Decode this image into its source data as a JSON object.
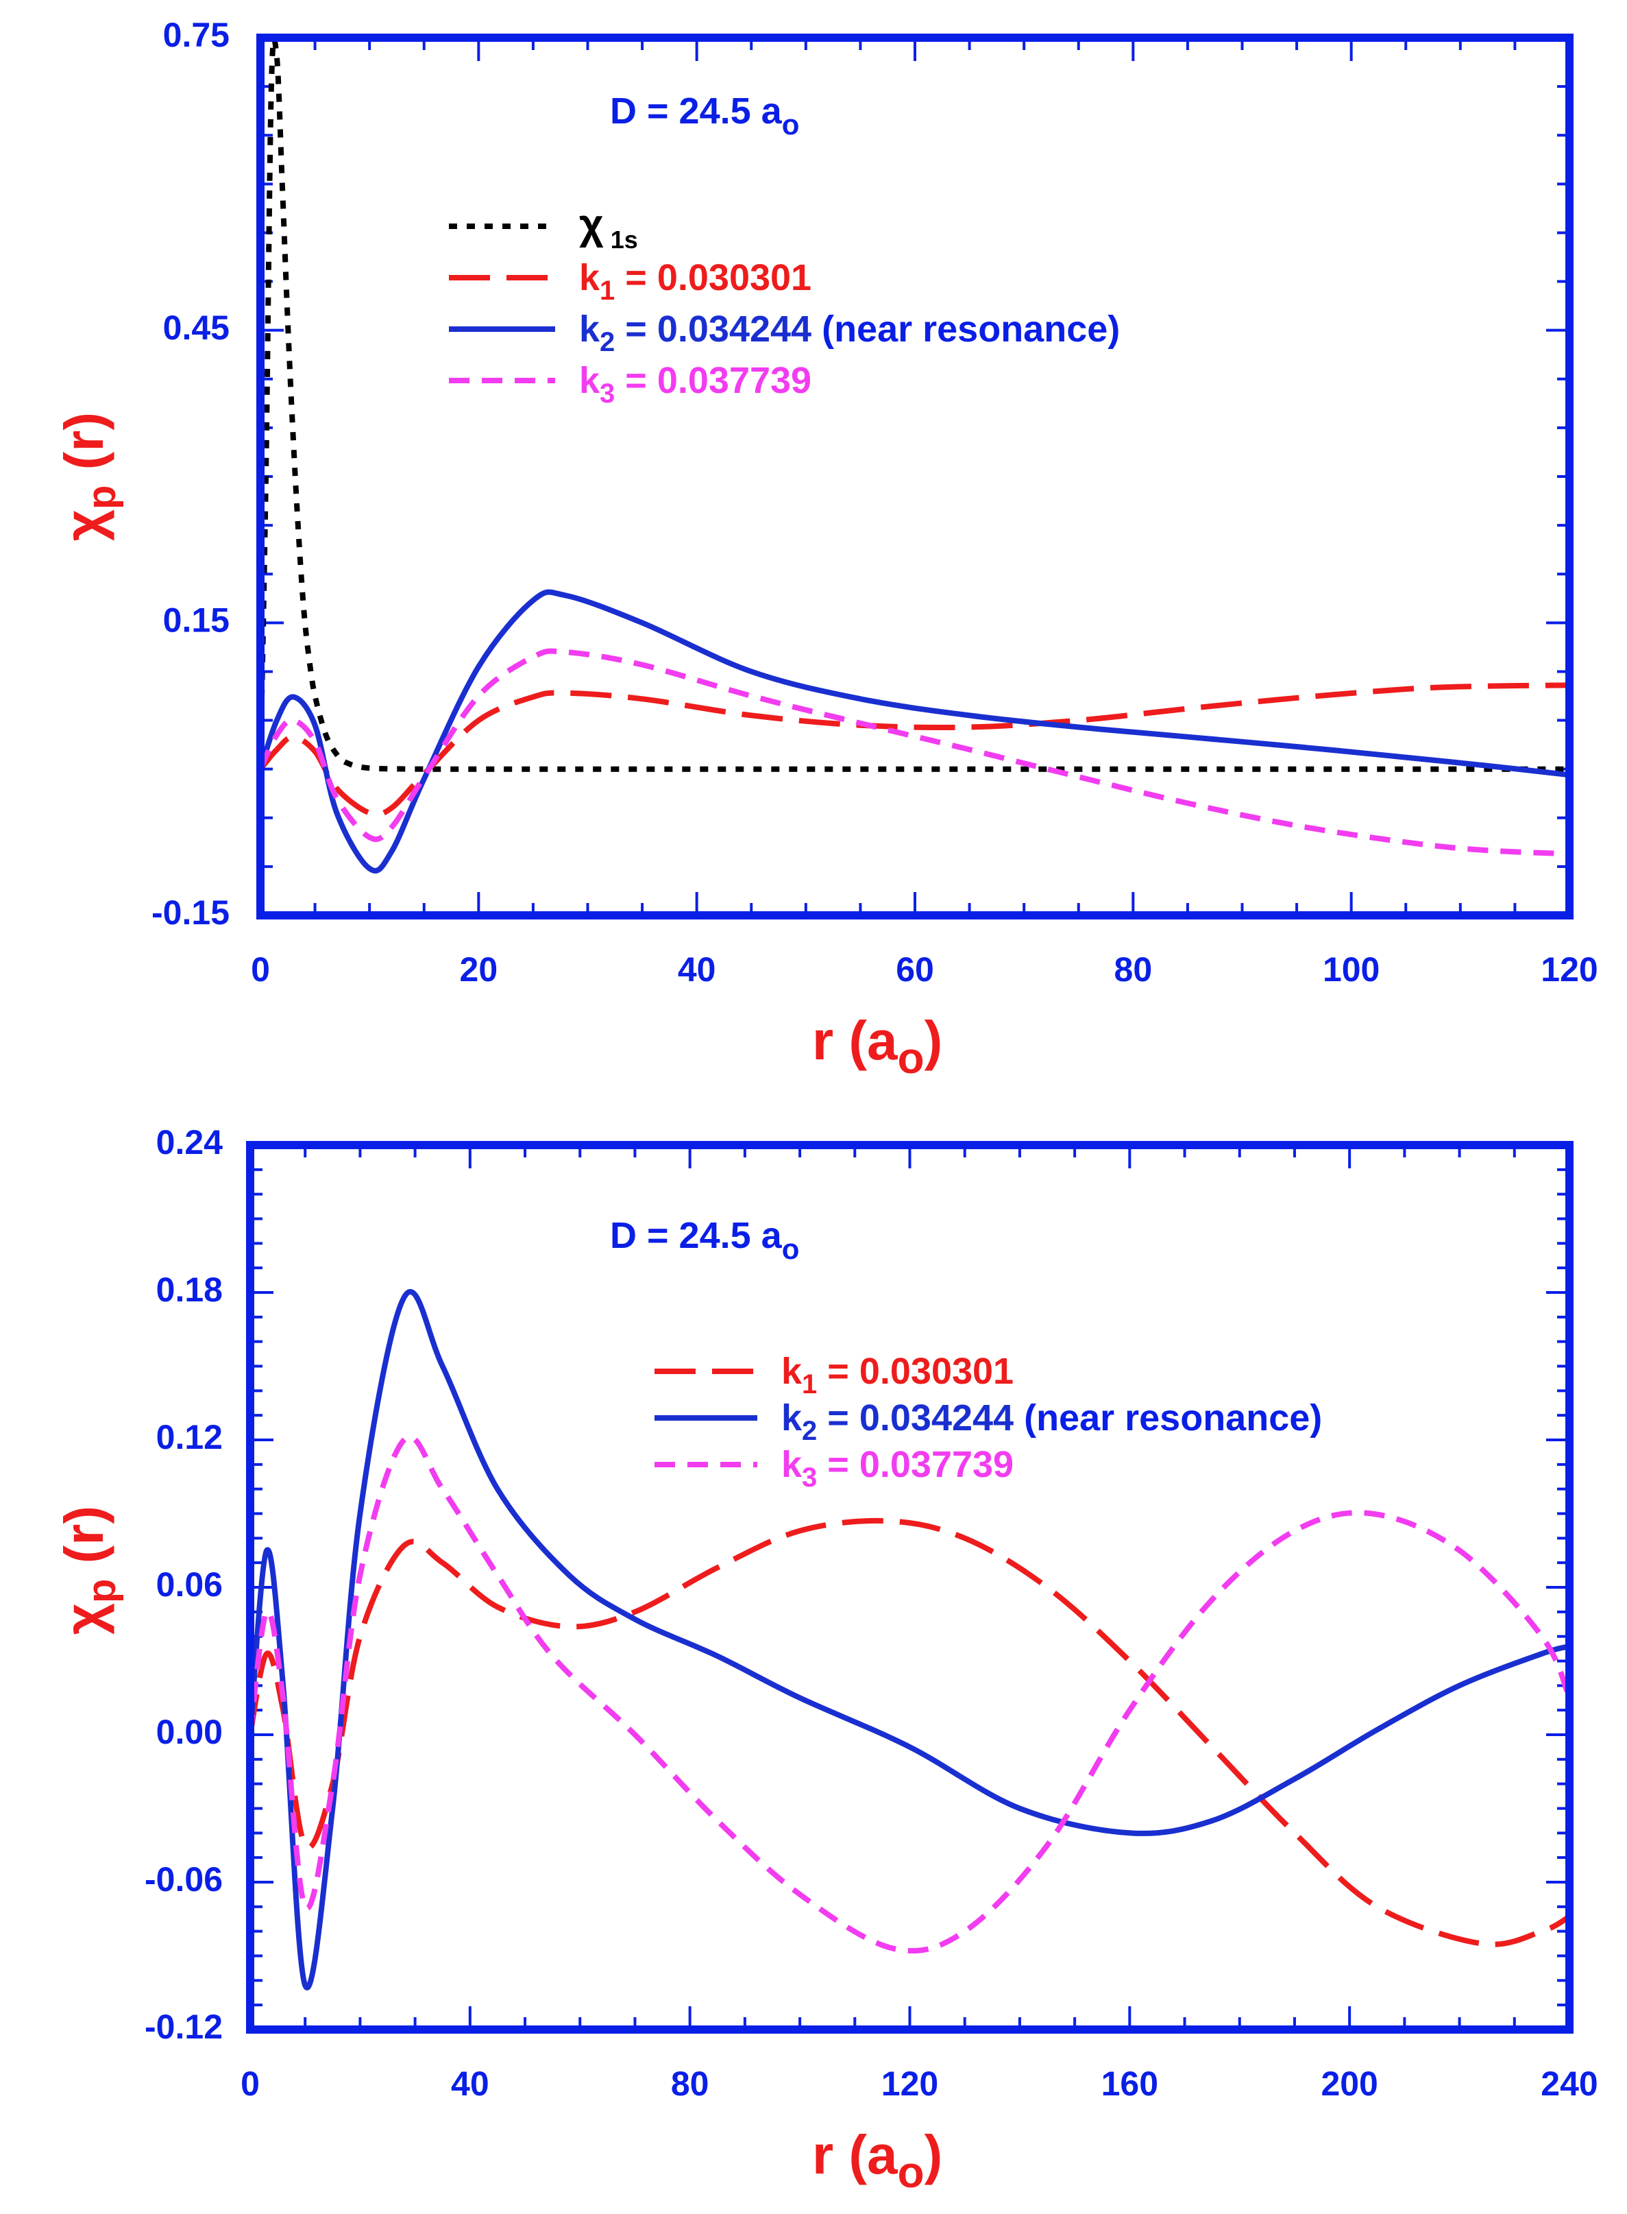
{
  "colors": {
    "frame": "#0a1fe6",
    "label_blue": "#0a1fe6",
    "label_red": "#ee1c1c",
    "chi1s": "#000000",
    "k1": "#ee1c1c",
    "k2": "#1a2fd0",
    "k3": "#f23cf0"
  },
  "chart_data": [
    {
      "type": "line",
      "title": "",
      "annotation": {
        "main": "D = 24.5 a",
        "sub": "o"
      },
      "xlabel": {
        "main": "r (a",
        "sub": "o",
        "close": ")"
      },
      "ylabel": {
        "main": "χ",
        "sub": "p",
        "rest": " (r)"
      },
      "xlim": [
        0,
        120
      ],
      "ylim": [
        -0.15,
        0.75
      ],
      "x_ticks": [
        "0",
        "20",
        "40",
        "60",
        "80",
        "100",
        "120"
      ],
      "y_ticks": [
        "-0.15",
        "0.15",
        "0.45",
        "0.75"
      ],
      "legend": [
        {
          "pre": "χ",
          "sub": " 1s",
          "post": "",
          "extra": "",
          "color_key": "chi1s",
          "style": "dotted"
        },
        {
          "pre": "k",
          "sub": "1",
          "post": " = 0.030301",
          "extra": "",
          "color_key": "k1",
          "style": "long-dash"
        },
        {
          "pre": "k",
          "sub": "2",
          "post": " = 0.034244",
          "extra": "  (near resonance)",
          "color_key": "k2",
          "style": "solid"
        },
        {
          "pre": "k",
          "sub": "3",
          "post": " = 0.037739",
          "extra": "",
          "color_key": "k3",
          "style": "short-dash"
        }
      ],
      "series": [
        {
          "name": "χ 1s",
          "color_key": "chi1s",
          "style": "dotted",
          "x": [
            0,
            0.5,
            1.0,
            1.5,
            2.0,
            2.5,
            3,
            3.5,
            4,
            4.5,
            5,
            6,
            7,
            8,
            10,
            15,
            20,
            40,
            60,
            80,
            100,
            120
          ],
          "y": [
            0,
            0.3,
            0.7,
            0.73,
            0.6,
            0.46,
            0.34,
            0.24,
            0.16,
            0.11,
            0.075,
            0.035,
            0.015,
            0.006,
            0.001,
            0,
            0,
            0,
            0,
            0,
            0,
            0
          ]
        },
        {
          "name": "k1 = 0.030301",
          "color_key": "k1",
          "style": "long-dash",
          "x": [
            0,
            1.5,
            3,
            5,
            7,
            10,
            12,
            15,
            20,
            25,
            28,
            35,
            45,
            55,
            65,
            75,
            85,
            95,
            105,
            112,
            120
          ],
          "y": [
            0,
            0.02,
            0.033,
            0.018,
            -0.02,
            -0.045,
            -0.04,
            -0.005,
            0.05,
            0.074,
            0.078,
            0.072,
            0.055,
            0.045,
            0.043,
            0.05,
            0.062,
            0.073,
            0.082,
            0.085,
            0.086
          ]
        },
        {
          "name": "k2 = 0.034244",
          "color_key": "k2",
          "style": "solid",
          "x": [
            0,
            1.5,
            3,
            5,
            7,
            10,
            12,
            15,
            20,
            25,
            28,
            35,
            45,
            55,
            65,
            75,
            85,
            95,
            105,
            112,
            120
          ],
          "y": [
            0,
            0.05,
            0.074,
            0.045,
            -0.045,
            -0.102,
            -0.085,
            -0.01,
            0.105,
            0.173,
            0.178,
            0.15,
            0.1,
            0.072,
            0.055,
            0.043,
            0.033,
            0.023,
            0.012,
            0.004,
            -0.006
          ]
        },
        {
          "name": "k3 = 0.037739",
          "color_key": "k3",
          "style": "short-dash",
          "x": [
            0,
            1.5,
            3,
            5,
            7,
            10,
            12,
            15,
            20,
            25,
            28,
            35,
            45,
            55,
            65,
            75,
            85,
            95,
            105,
            112,
            120
          ],
          "y": [
            0,
            0.035,
            0.05,
            0.028,
            -0.03,
            -0.07,
            -0.06,
            -0.008,
            0.075,
            0.115,
            0.12,
            0.107,
            0.075,
            0.047,
            0.02,
            -0.008,
            -0.035,
            -0.058,
            -0.075,
            -0.083,
            -0.087
          ]
        }
      ]
    },
    {
      "type": "line",
      "title": "",
      "annotation": {
        "main": "D = 24.5 a",
        "sub": "o"
      },
      "xlabel": {
        "main": "r (a",
        "sub": "o",
        "close": ")"
      },
      "ylabel": {
        "main": "χ",
        "sub": "p",
        "rest": " (r)"
      },
      "xlim": [
        0,
        240
      ],
      "ylim": [
        -0.12,
        0.24
      ],
      "x_ticks": [
        "0",
        "40",
        "80",
        "120",
        "160",
        "200",
        "240"
      ],
      "y_ticks": [
        "-0.12",
        "-0.06",
        "0.00",
        "0.06",
        "0.12",
        "0.18",
        "0.24"
      ],
      "legend": [
        {
          "pre": "k",
          "sub": "1",
          "post": " = 0.030301",
          "extra": "",
          "color_key": "k1",
          "style": "long-dash"
        },
        {
          "pre": "k",
          "sub": "2",
          "post": " = 0.034244",
          "extra": "  (near resonance)",
          "color_key": "k2",
          "style": "solid"
        },
        {
          "pre": "k",
          "sub": "3",
          "post": " = 0.037739",
          "extra": "",
          "color_key": "k3",
          "style": "short-dash"
        }
      ],
      "series": [
        {
          "name": "k1 = 0.030301",
          "color_key": "k1",
          "style": "long-dash",
          "x": [
            0,
            3,
            6,
            10,
            15,
            20,
            28,
            35,
            45,
            58,
            70,
            85,
            100,
            116,
            130,
            145,
            160,
            175,
            190,
            205,
            224,
            235,
            240
          ],
          "y": [
            0,
            0.033,
            0.01,
            -0.045,
            -0.02,
            0.04,
            0.077,
            0.07,
            0.052,
            0.044,
            0.05,
            0.068,
            0.083,
            0.087,
            0.08,
            0.06,
            0.03,
            -0.005,
            -0.04,
            -0.07,
            -0.085,
            -0.08,
            -0.074
          ]
        },
        {
          "name": "k2 = 0.034244",
          "color_key": "k2",
          "style": "solid",
          "x": [
            0,
            3,
            6,
            10,
            15,
            20,
            28,
            35,
            45,
            58,
            70,
            85,
            100,
            120,
            140,
            160,
            175,
            190,
            205,
            220,
            235,
            240
          ],
          "y": [
            0,
            0.075,
            0.02,
            -0.102,
            -0.03,
            0.09,
            0.178,
            0.15,
            0.1,
            0.065,
            0.047,
            0.032,
            0.015,
            -0.005,
            -0.03,
            -0.04,
            -0.035,
            -0.018,
            0.002,
            0.02,
            0.033,
            0.036
          ]
        },
        {
          "name": "k3 = 0.037739",
          "color_key": "k3",
          "style": "short-dash",
          "x": [
            0,
            3,
            6,
            10,
            15,
            20,
            28,
            35,
            45,
            55,
            70,
            85,
            100,
            117,
            130,
            145,
            160,
            175,
            190,
            204,
            220,
            235,
            240
          ],
          "y": [
            0,
            0.05,
            0.015,
            -0.07,
            -0.02,
            0.065,
            0.12,
            0.1,
            0.065,
            0.032,
            0,
            -0.035,
            -0.065,
            -0.087,
            -0.08,
            -0.045,
            0.01,
            0.055,
            0.083,
            0.09,
            0.075,
            0.04,
            0.015
          ]
        }
      ]
    }
  ]
}
